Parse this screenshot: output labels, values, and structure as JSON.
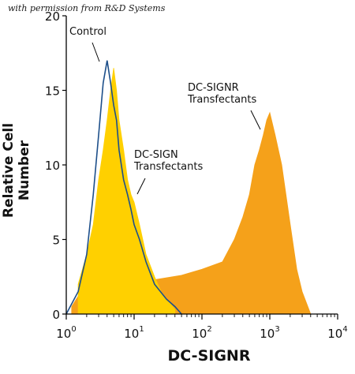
{
  "watermark": "with permission from R&D Systems",
  "chart_data": {
    "type": "area",
    "xlabel": "DC-SIGNR",
    "ylabel": "Relative Cell Number",
    "xscale": "log",
    "xlim": [
      1,
      10000
    ],
    "ylim": [
      0,
      20
    ],
    "x_ticks": [
      {
        "value": 1,
        "base": "10",
        "exp": "0"
      },
      {
        "value": 10,
        "base": "10",
        "exp": "1"
      },
      {
        "value": 100,
        "base": "10",
        "exp": "2"
      },
      {
        "value": 1000,
        "base": "10",
        "exp": "3"
      },
      {
        "value": 10000,
        "base": "10",
        "exp": "4"
      }
    ],
    "y_ticks": [
      "0",
      "5",
      "10",
      "15",
      "20"
    ],
    "series": [
      {
        "name": "DC-SIGNR Transfectants",
        "color": "#f5a11a",
        "style": "filled",
        "x": [
          1.2,
          1.5,
          2,
          3,
          5,
          10,
          20,
          50,
          100,
          200,
          300,
          400,
          500,
          600,
          700,
          800,
          900,
          1000,
          1200,
          1500,
          2000,
          2500,
          3000,
          4000
        ],
        "y": [
          0.5,
          1.2,
          1.5,
          2,
          2,
          2,
          2.3,
          2.6,
          3,
          3.5,
          5,
          6.5,
          8,
          10,
          11,
          12,
          13,
          13.5,
          12,
          10,
          6,
          3,
          1.5,
          0
        ]
      },
      {
        "name": "DC-SIGN Transfectants",
        "color": "#ffd000",
        "style": "filled",
        "x": [
          1.5,
          2,
          2.5,
          3,
          3.5,
          4,
          4.5,
          5,
          5.5,
          6,
          7,
          8,
          9,
          10,
          12,
          15,
          20,
          25,
          30,
          40
        ],
        "y": [
          2,
          4,
          6,
          9,
          11,
          13,
          15,
          16.5,
          15,
          13,
          11,
          9,
          8,
          7.5,
          6,
          4,
          2.5,
          1.5,
          1,
          0.3
        ]
      },
      {
        "name": "Control",
        "color": "#1d4f8a",
        "style": "line",
        "x": [
          1,
          1.5,
          2,
          2.5,
          3,
          3.5,
          4,
          4.5,
          5,
          5.5,
          6,
          7,
          8,
          9,
          10,
          12,
          15,
          20,
          30,
          40,
          50
        ],
        "y": [
          0,
          1.5,
          4,
          8,
          12,
          15.5,
          17,
          15.5,
          14,
          13,
          11,
          9,
          8,
          7,
          6,
          5,
          3.5,
          2,
          1,
          0.5,
          0
        ]
      }
    ],
    "annotations": [
      {
        "lines": [
          "Control"
        ]
      },
      {
        "lines": [
          "DC-SIGN",
          "Transfectants"
        ]
      },
      {
        "lines": [
          "DC-SIGNR",
          "Transfectants"
        ]
      }
    ]
  }
}
